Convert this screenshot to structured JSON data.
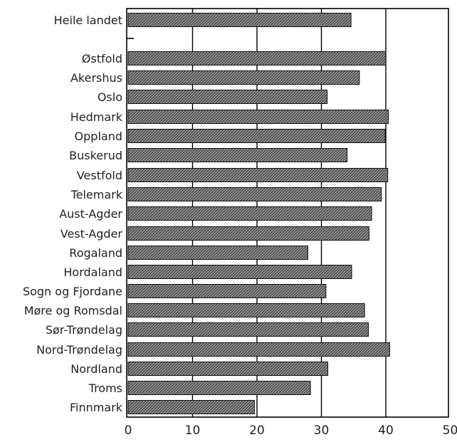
{
  "chart_data": {
    "type": "bar",
    "orientation": "horizontal",
    "categories": [
      "Heile landet",
      "Østfold",
      "Akershus",
      "Oslo",
      "Hedmark",
      "Oppland",
      "Buskerud",
      "Vestfold",
      "Telemark",
      "Aust-Agder",
      "Vest-Agder",
      "Rogaland",
      "Hordaland",
      "Sogn og Fjordane",
      "Møre og Romsdal",
      "Sør-Trøndelag",
      "Nord-Trøndelag",
      "Nordland",
      "Troms",
      "Finnmark"
    ],
    "values": [
      34.6,
      40.0,
      35.9,
      30.9,
      40.4,
      39.9,
      34.0,
      40.3,
      39.3,
      37.8,
      37.4,
      27.9,
      34.7,
      30.7,
      36.7,
      37.3,
      40.6,
      31.0,
      28.3,
      19.6
    ],
    "title": "",
    "xlabel": "",
    "ylabel": "",
    "xlim": [
      0,
      50
    ],
    "xticks": [
      0,
      10,
      20,
      30,
      40,
      50
    ],
    "grid": "vertical lines at 10, 20, 30, 40",
    "colors": {
      "bar_fill": "#8c8c8c",
      "bar_pattern": "#1a1a1a",
      "axis": "#000000",
      "grid": "#000000"
    }
  }
}
